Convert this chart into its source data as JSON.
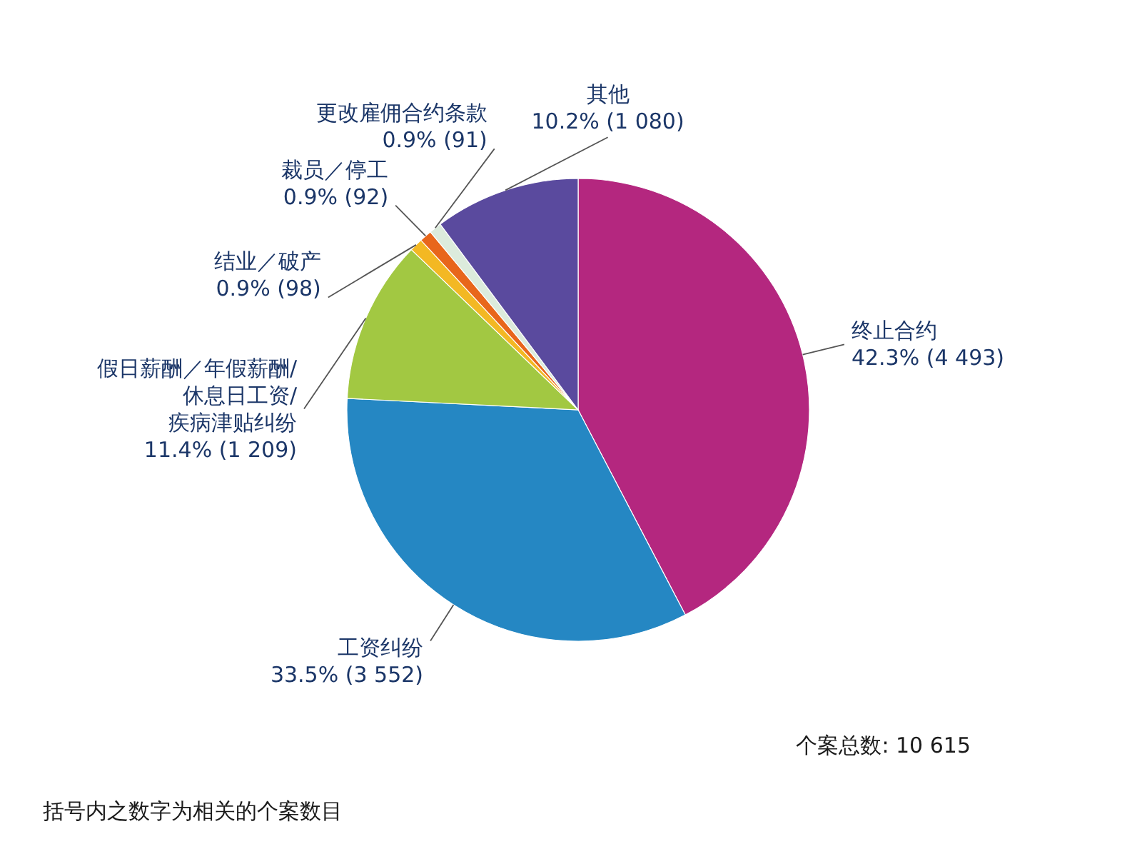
{
  "chart_data": {
    "type": "pie",
    "categories": [
      "终止合约",
      "工资纠纷",
      "假日薪酬／年假薪酬/\n休息日工资/\n疾病津贴纠纷",
      "结业／破产",
      "裁员／停工",
      "更改雇佣合约条款",
      "其他"
    ],
    "values": [
      4493,
      3552,
      1209,
      98,
      92,
      91,
      1080
    ],
    "value_labels": [
      "42.3% (4 493)",
      "33.5% (3 552)",
      "11.4% (1 209)",
      "0.9% (98)",
      "0.9% (92)",
      "0.9% (91)",
      "10.2% (1 080)"
    ],
    "colors": [
      "#b4277f",
      "#2587c3",
      "#a2c842",
      "#f3b823",
      "#e8661b",
      "#dcebdc",
      "#5a4a9e"
    ],
    "annotations": [
      "个案总数: 10 615",
      "括号内之数字为相关的个案数目"
    ]
  }
}
